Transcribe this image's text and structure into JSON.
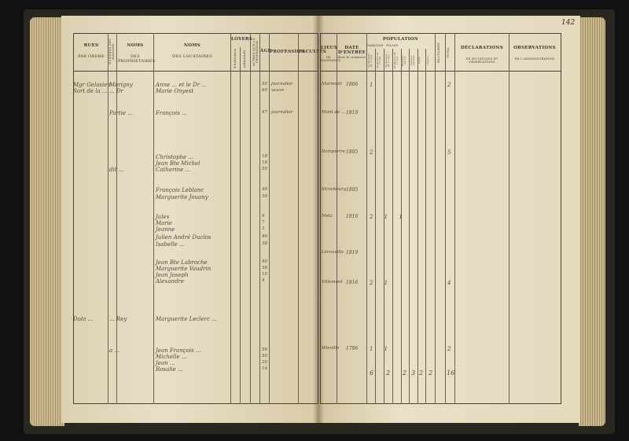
{
  "page_number": "142",
  "left_page": {
    "headers": {
      "col1": [
        "RUES",
        "PAR ORDRE"
      ],
      "col2": "NUMÉROS DES MAISONS",
      "col3": [
        "NOMS",
        "DES PROPRIÉTAIRES"
      ],
      "col4": [
        "NOMS",
        "DES LOCATAIRES"
      ],
      "col5": "LOYERS",
      "col5a": "d'habitation",
      "col5b": "industriels",
      "col6": "AUTRES QUE LA PROFESSION",
      "col7": "ÂGE",
      "col8": "PROFESSION",
      "col9": "FACULTÉS"
    },
    "entries": [
      {
        "street": "Mgr Gelasien",
        "owner": "Marigny",
        "tenant": "Anne ... et le Dr ...",
        "age": "50",
        "profession": "journalier"
      },
      {
        "street": "Sort de la ...",
        "owner": "... Dr",
        "tenant": "Marie Onyest",
        "age": "60",
        "profession": "veuve"
      },
      {
        "owner": "Partie ...",
        "tenant": "François ...",
        "age": "47",
        "profession": "journalier"
      },
      {
        "tenant": "Christophe ...",
        "age": "18"
      },
      {
        "tenant": "Jean Bte Michel",
        "age": "16"
      },
      {
        "owner": "dit ...",
        "tenant": "Catherine ...",
        "age": "50"
      },
      {
        "tenant": "François Leblanc",
        "age": "40"
      },
      {
        "tenant": "Marguerite Jouany",
        "age": "39"
      },
      {
        "tenant": "Jules",
        "age": "9"
      },
      {
        "tenant": "Marie",
        "age": "7"
      },
      {
        "tenant": "Jeanne",
        "age": "3"
      },
      {
        "tenant": "Julien André Duclos",
        "age": "46"
      },
      {
        "tenant": "Isabelle ...",
        "age": "38"
      },
      {
        "tenant": "Jean Bte Labroche",
        "age": "40"
      },
      {
        "tenant": "Marguerite Vaudrin",
        "age": "36"
      },
      {
        "tenant": "Jean Joseph",
        "age": "10"
      },
      {
        "tenant": "Alexandre",
        "age": "4"
      },
      {
        "street": "Dolo ...",
        "owner": "... Rey",
        "tenant": "Marguerite Leclerc ..."
      },
      {
        "owner": "a ... ",
        "tenant": "Jean François ...",
        "age": "56"
      },
      {
        "tenant": "Michelle ...",
        "age": "50"
      },
      {
        "tenant": "Jean ...",
        "age": "20"
      },
      {
        "tenant": "Rosalie ...",
        "age": "14"
      }
    ]
  },
  "right_page": {
    "headers": {
      "col1": [
        "LIEUX",
        "DE NAISSANCE"
      ],
      "col2": [
        "DATE D'ENTRÉE",
        "dans la commune"
      ],
      "population": "POPULATION",
      "garcons": "GARÇONS",
      "filles": "FILLES",
      "sub": [
        "Au-dessous de 15 ans",
        "Au-dessus de 15 ans",
        "Au-dessous de 15 ans",
        "Au-dessus de 15 ans",
        "Hommes mariés",
        "Femmes mariées",
        "Veufs",
        "Veuves"
      ],
      "militaires": "MILITAIRES",
      "total": "TOTAL",
      "declarations": [
        "DÉCLARATIONS",
        "DE MUTATIONS ET OBSERVATIONS"
      ],
      "observations": [
        "OBSERVATIONS",
        "DE L'ADMINISTRATION"
      ]
    },
    "entries": [
      {
        "place": "Marmont",
        "date": "1806",
        "counts": "1",
        "total": "2"
      },
      {
        "place": "Mont de ...",
        "date": "1819"
      },
      {
        "place": "Dompierre",
        "date": "1805",
        "counts": "2",
        "total": "5"
      },
      {
        "place": "Strasbourg",
        "date": "1805"
      },
      {
        "place": "Metz",
        "date": "1816",
        "counts": "2 1 1"
      },
      {
        "place": "Lérouville",
        "date": "1819"
      },
      {
        "place": "Villemont",
        "date": "1816",
        "counts": "2 1",
        "total": "4"
      },
      {
        "place": "Wieville",
        "date": "1796",
        "counts": "1 1",
        "total": "2"
      }
    ],
    "totals": [
      "6",
      "2",
      "2",
      "3",
      "2",
      "2",
      "16"
    ]
  }
}
